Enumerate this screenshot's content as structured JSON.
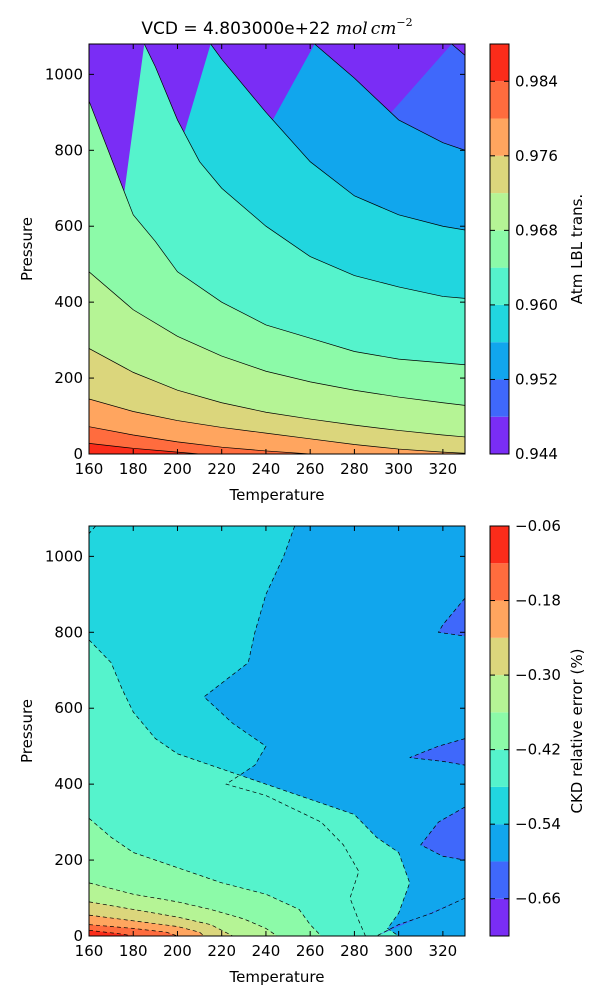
{
  "chart_data": [
    {
      "type": "contour",
      "title": "VCD = 4.803000e+22 mol cm⁻²",
      "title_parts": {
        "prefix": "VCD = 4.803000e+22 ",
        "mol": "mol",
        "cm": "cm",
        "exponent": "−2"
      },
      "xlabel": "Temperature",
      "ylabel": "Pressure",
      "xlim": [
        160,
        330
      ],
      "ylim": [
        0,
        1080
      ],
      "x_ticks": [
        160,
        180,
        200,
        220,
        240,
        260,
        280,
        300,
        320
      ],
      "y_ticks": [
        0,
        200,
        400,
        600,
        800,
        1000
      ],
      "contour_line_style": "solid",
      "colorbar": {
        "label": "Atm LBL trans.",
        "levels": [
          0.944,
          0.948,
          0.952,
          0.956,
          0.96,
          0.964,
          0.968,
          0.972,
          0.976,
          0.98,
          0.984,
          0.988
        ],
        "tick_values": [
          0.944,
          0.952,
          0.96,
          0.968,
          0.976,
          0.984
        ],
        "tick_labels": [
          "0.944",
          "0.952",
          "0.960",
          "0.968",
          "0.976",
          "0.984"
        ]
      },
      "contours": [
        {
          "level": 0.984,
          "points": [
            [
              160,
              28
            ],
            [
              180,
              15
            ],
            [
              200,
              5
            ],
            [
              210,
              0
            ]
          ]
        },
        {
          "level": 0.98,
          "points": [
            [
              160,
              72
            ],
            [
              180,
              50
            ],
            [
              200,
              32
            ],
            [
              220,
              18
            ],
            [
              240,
              8
            ],
            [
              260,
              0
            ]
          ]
        },
        {
          "level": 0.976,
          "points": [
            [
              160,
              145
            ],
            [
              180,
              112
            ],
            [
              200,
              88
            ],
            [
              220,
              70
            ],
            [
              240,
              55
            ],
            [
              260,
              40
            ],
            [
              280,
              25
            ],
            [
              300,
              13
            ],
            [
              320,
              5
            ],
            [
              330,
              2
            ]
          ]
        },
        {
          "level": 0.972,
          "points": [
            [
              160,
              278
            ],
            [
              180,
              215
            ],
            [
              200,
              168
            ],
            [
              220,
              135
            ],
            [
              240,
              110
            ],
            [
              260,
              92
            ],
            [
              280,
              76
            ],
            [
              300,
              62
            ],
            [
              320,
              50
            ],
            [
              330,
              45
            ]
          ]
        },
        {
          "level": 0.968,
          "points": [
            [
              160,
              480
            ],
            [
              180,
              380
            ],
            [
              200,
              310
            ],
            [
              220,
              258
            ],
            [
              240,
              218
            ],
            [
              260,
              190
            ],
            [
              280,
              168
            ],
            [
              300,
              150
            ],
            [
              320,
              135
            ],
            [
              330,
              128
            ]
          ]
        },
        {
          "level": 0.964,
          "points": [
            [
              160,
              930
            ],
            [
              170,
              780
            ],
            [
              180,
              630
            ],
            [
              190,
              560
            ],
            [
              200,
              480
            ],
            [
              220,
              400
            ],
            [
              240,
              340
            ],
            [
              260,
              305
            ],
            [
              280,
              270
            ],
            [
              300,
              250
            ],
            [
              320,
              240
            ],
            [
              330,
              235
            ]
          ]
        },
        {
          "level": 0.96,
          "points": [
            [
              185,
              1080
            ],
            [
              190,
              1020
            ],
            [
              200,
              880
            ],
            [
              210,
              770
            ],
            [
              220,
              700
            ],
            [
              240,
              600
            ],
            [
              260,
              520
            ],
            [
              280,
              470
            ],
            [
              300,
              440
            ],
            [
              320,
              415
            ],
            [
              330,
              410
            ]
          ]
        },
        {
          "level": 0.956,
          "points": [
            [
              215,
              1080
            ],
            [
              220,
              1040
            ],
            [
              240,
              900
            ],
            [
              260,
              770
            ],
            [
              280,
              680
            ],
            [
              300,
              630
            ],
            [
              320,
              600
            ],
            [
              330,
              590
            ]
          ]
        },
        {
          "level": 0.952,
          "points": [
            [
              262,
              1080
            ],
            [
              280,
              990
            ],
            [
              300,
              880
            ],
            [
              320,
              820
            ],
            [
              330,
              800
            ]
          ]
        },
        {
          "level": 0.948,
          "points": [
            [
              324,
              1080
            ],
            [
              330,
              1050
            ]
          ]
        }
      ]
    },
    {
      "type": "contour",
      "title": "",
      "xlabel": "Temperature",
      "ylabel": "Pressure",
      "xlim": [
        160,
        330
      ],
      "ylim": [
        0,
        1080
      ],
      "x_ticks": [
        160,
        180,
        200,
        220,
        240,
        260,
        280,
        300,
        320
      ],
      "y_ticks": [
        0,
        200,
        400,
        600,
        800,
        1000
      ],
      "contour_line_style": "dashed",
      "colorbar": {
        "label": "CKD relative error (%)",
        "levels": [
          -0.72,
          -0.66,
          -0.6,
          -0.54,
          -0.48,
          -0.42,
          -0.36,
          -0.3,
          -0.24,
          -0.18,
          -0.12,
          -0.06
        ],
        "tick_values": [
          -0.06,
          -0.18,
          -0.3,
          -0.42,
          -0.54,
          -0.66
        ],
        "tick_labels": [
          "−0.06",
          "−0.18",
          "−0.30",
          "−0.42",
          "−0.54",
          "−0.66"
        ]
      },
      "contours": [
        {
          "level": -0.54,
          "points": [
            [
              163,
              1080
            ],
            [
              160,
              1060
            ]
          ]
        },
        {
          "level": -0.48,
          "points": [
            [
              160,
              780
            ],
            [
              170,
              720
            ],
            [
              175,
              650
            ],
            [
              180,
              590
            ],
            [
              190,
              520
            ],
            [
              200,
              480
            ],
            [
              220,
              440
            ],
            [
              240,
              400
            ],
            [
              260,
              360
            ],
            [
              280,
              320
            ],
            [
              290,
              260
            ],
            [
              300,
              220
            ],
            [
              305,
              140
            ],
            [
              300,
              60
            ],
            [
              295,
              20
            ],
            [
              300,
              0
            ]
          ]
        },
        {
          "level": -0.42,
          "points": [
            [
              160,
              310
            ],
            [
              170,
              260
            ],
            [
              180,
              220
            ],
            [
              200,
              180
            ],
            [
              220,
              140
            ],
            [
              240,
              110
            ],
            [
              255,
              70
            ],
            [
              260,
              30
            ],
            [
              265,
              0
            ]
          ]
        },
        {
          "level": -0.36,
          "points": [
            [
              160,
              140
            ],
            [
              180,
              110
            ],
            [
              200,
              90
            ],
            [
              215,
              70
            ],
            [
              230,
              45
            ],
            [
              240,
              20
            ],
            [
              245,
              0
            ]
          ]
        },
        {
          "level": -0.3,
          "points": [
            [
              160,
              90
            ],
            [
              180,
              70
            ],
            [
              200,
              50
            ],
            [
              215,
              30
            ],
            [
              225,
              0
            ]
          ]
        },
        {
          "level": -0.24,
          "points": [
            [
              160,
              55
            ],
            [
              180,
              40
            ],
            [
              200,
              25
            ],
            [
              210,
              10
            ],
            [
              212,
              0
            ]
          ]
        },
        {
          "level": -0.18,
          "points": [
            [
              160,
              30
            ],
            [
              180,
              20
            ],
            [
              195,
              10
            ],
            [
              200,
              0
            ]
          ]
        },
        {
          "level": -0.12,
          "points": [
            [
              160,
              15
            ],
            [
              175,
              5
            ],
            [
              180,
              0
            ]
          ]
        },
        {
          "level": -0.6,
          "points": [
            [
              253,
              1080
            ],
            [
              248,
              1000
            ],
            [
              240,
              900
            ],
            [
              235,
              800
            ],
            [
              232,
              720
            ],
            [
              212,
              630
            ],
            [
              225,
              560
            ],
            [
              240,
              500
            ],
            [
              235,
              450
            ],
            [
              222,
              400
            ],
            [
              240,
              370
            ],
            [
              265,
              300
            ],
            [
              275,
              240
            ],
            [
              282,
              170
            ],
            [
              278,
              100
            ],
            [
              282,
              40
            ],
            [
              285,
              0
            ]
          ]
        },
        {
          "level": -0.66,
          "points": [
            [
              330,
              890
            ],
            [
              320,
              820
            ],
            [
              318,
              800
            ],
            [
              330,
              790
            ]
          ]
        },
        {
          "level": -0.66,
          "points": [
            [
              330,
              520
            ],
            [
              318,
              500
            ],
            [
              305,
              470
            ],
            [
              320,
              460
            ],
            [
              330,
              450
            ]
          ]
        },
        {
          "level": -0.66,
          "points": [
            [
              330,
              340
            ],
            [
              318,
              300
            ],
            [
              310,
              240
            ],
            [
              320,
              210
            ],
            [
              330,
              200
            ]
          ]
        },
        {
          "level": -0.66,
          "points": [
            [
              330,
              100
            ],
            [
              315,
              60
            ],
            [
              300,
              30
            ],
            [
              290,
              0
            ]
          ]
        }
      ]
    }
  ]
}
